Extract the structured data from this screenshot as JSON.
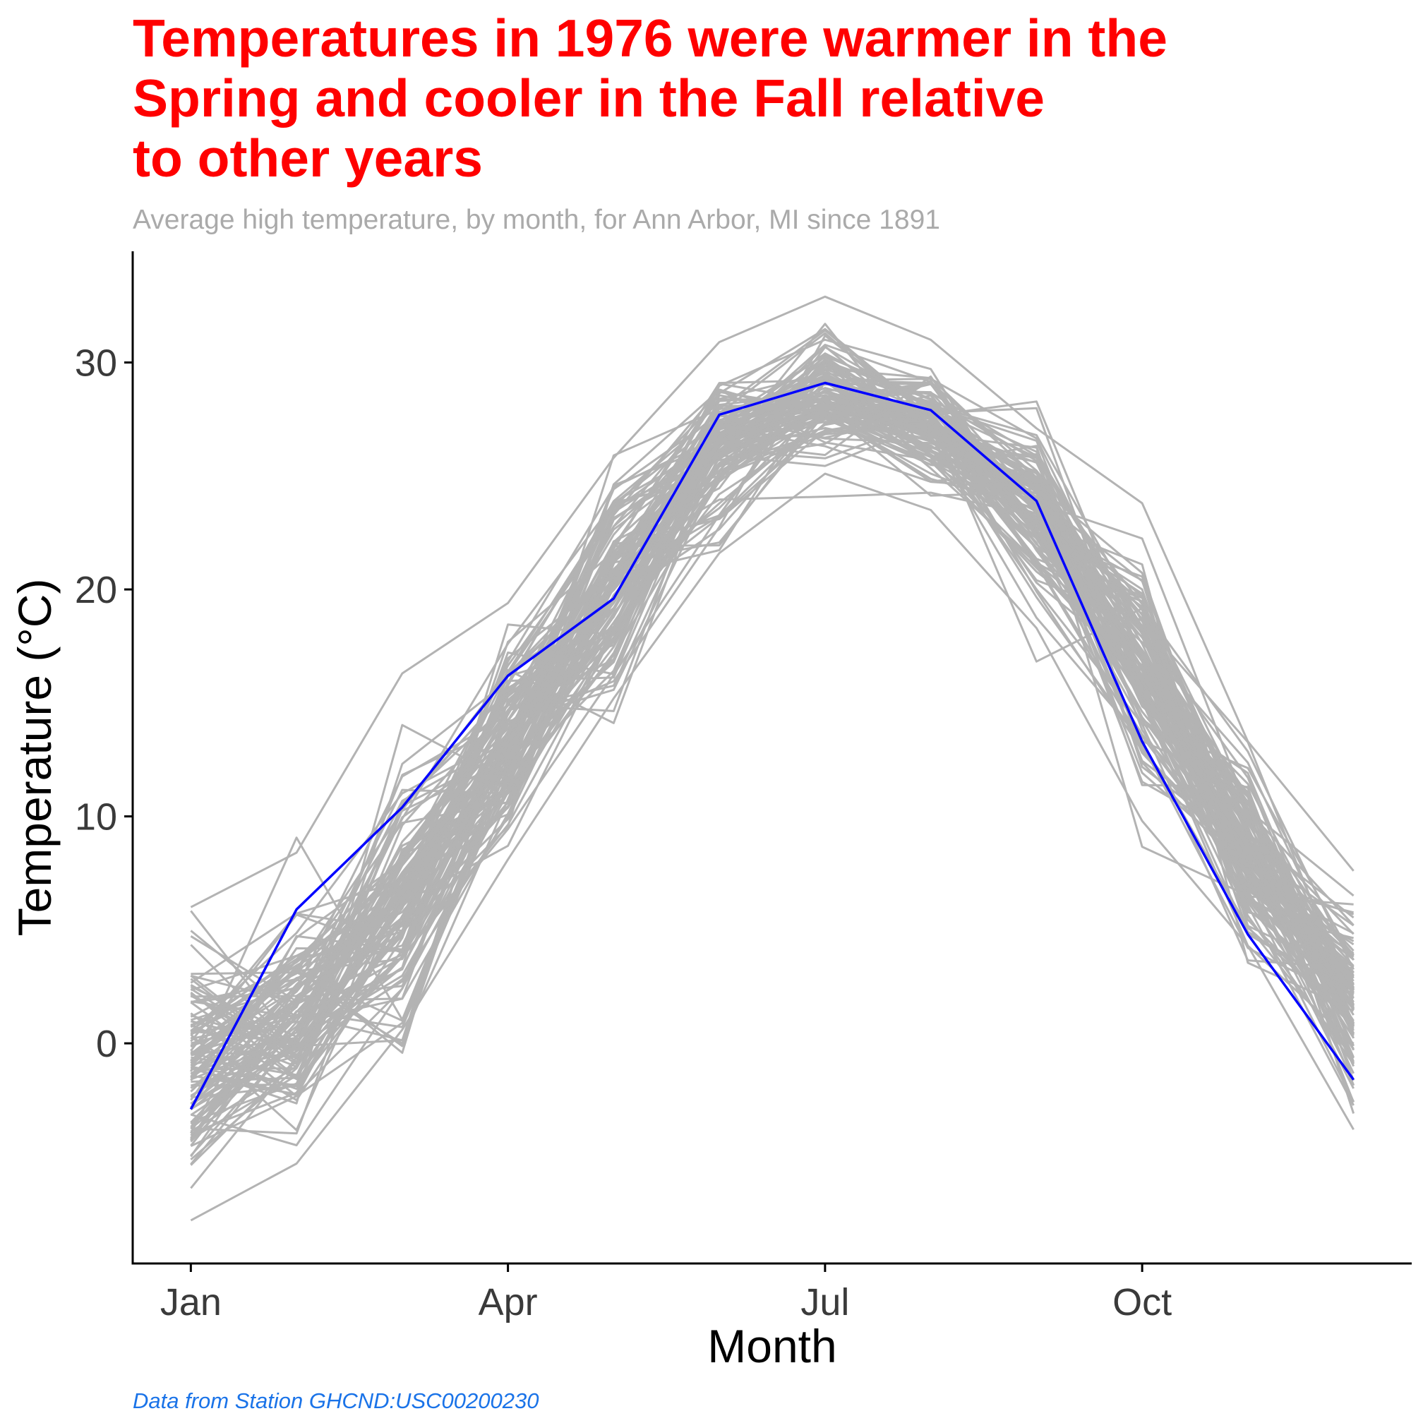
{
  "colors": {
    "title": "#ff0000",
    "subtitle": "#aaaaaa",
    "caption": "#1a73e8",
    "highlight": "#0000ff",
    "background_lines": "#b3b3b3",
    "axis": "#000000"
  },
  "chart_data": {
    "type": "line",
    "title_lines": [
      "Temperatures in 1976 were warmer in the",
      "Spring and cooler in the Fall relative",
      "to other years"
    ],
    "subtitle": "Average high temperature, by month, for Ann Arbor, MI since 1891",
    "caption": "Data from Station GHCND:USC00200230",
    "xlabel": "Month",
    "ylabel": "Temperature (°C)",
    "x": [
      1,
      2,
      3,
      4,
      5,
      6,
      7,
      8,
      9,
      10,
      11,
      12
    ],
    "xlim": [
      0.45,
      12.55
    ],
    "ylim": [
      -9.7,
      34.9
    ],
    "x_ticks": [
      {
        "value": 1,
        "label": "Jan"
      },
      {
        "value": 4,
        "label": "Apr"
      },
      {
        "value": 7,
        "label": "Jul"
      },
      {
        "value": 10,
        "label": "Oct"
      }
    ],
    "y_ticks": [
      {
        "value": 0,
        "label": "0"
      },
      {
        "value": 10,
        "label": "10"
      },
      {
        "value": 20,
        "label": "20"
      },
      {
        "value": 30,
        "label": "30"
      }
    ],
    "highlight_series": {
      "name": "1976",
      "values": [
        -2.9,
        5.9,
        10.4,
        16.2,
        19.6,
        27.7,
        29.1,
        27.9,
        23.9,
        13.3,
        4.8,
        -1.6
      ]
    },
    "background_series_note": "One grey line per year since 1891",
    "background_mean": [
      -0.8,
      0.9,
      6.4,
      14.1,
      20.6,
      26.4,
      28.6,
      27.4,
      23.4,
      16.5,
      8.6,
      1.9
    ],
    "background_spread": [
      2.2,
      2.3,
      2.9,
      2.1,
      2.2,
      1.5,
      1.3,
      1.2,
      1.6,
      2.1,
      2.0,
      2.1
    ],
    "background_extremes": [
      [
        6.0,
        8.4,
        16.3,
        19.4,
        25.8,
        30.9,
        32.9,
        31.0,
        27.1,
        23.8,
        13.3,
        7.6
      ],
      [
        -7.8,
        -5.3,
        0.6,
        8.1,
        15.2,
        21.6,
        25.1,
        23.5,
        18.3,
        9.8,
        4.3,
        -3.8
      ]
    ]
  }
}
